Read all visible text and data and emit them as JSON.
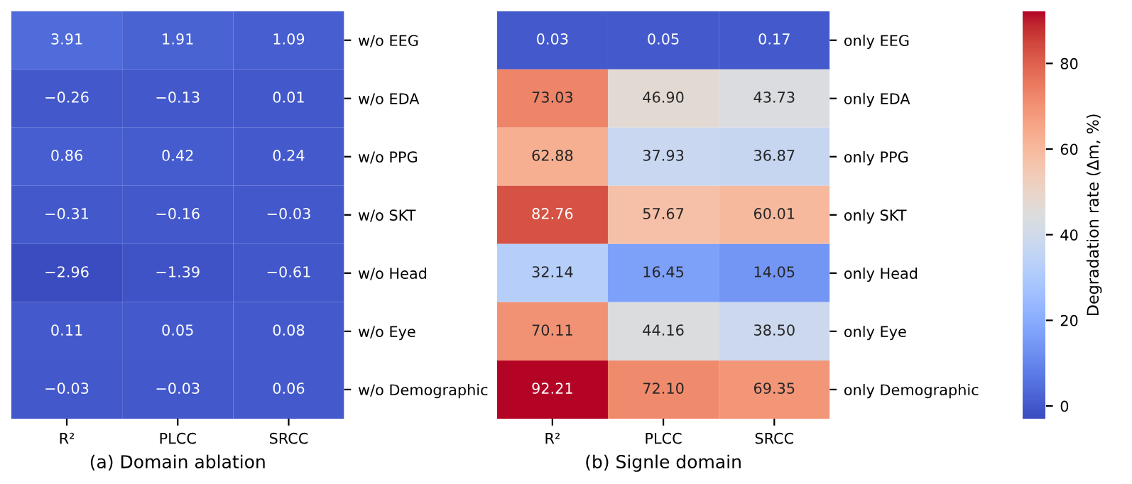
{
  "chart_data": [
    {
      "type": "heatmap",
      "xlabel": "(a) Domain ablation",
      "categories": [
        "R²",
        "PLCC",
        "SRCC"
      ],
      "y_categories": [
        "w/o EEG",
        "w/o EDA",
        "w/o PPG",
        "w/o SKT",
        "w/o Head",
        "w/o Eye",
        "w/o Demographic"
      ],
      "cells": [
        [
          3.91,
          1.91,
          1.09
        ],
        [
          -0.26,
          -0.13,
          0.01
        ],
        [
          0.86,
          0.42,
          0.24
        ],
        [
          -0.31,
          -0.16,
          -0.03
        ],
        [
          -2.96,
          -1.39,
          -0.61
        ],
        [
          0.11,
          0.05,
          0.08
        ],
        [
          -0.03,
          -0.03,
          0.06
        ]
      ],
      "data_labels": true
    },
    {
      "type": "heatmap",
      "xlabel": "(b) Signle domain",
      "categories": [
        "R²",
        "PLCC",
        "SRCC"
      ],
      "y_categories": [
        "only EEG",
        "only EDA",
        "only PPG",
        "only SKT",
        "only Head",
        "only Eye",
        "only Demographic"
      ],
      "cells": [
        [
          0.03,
          0.05,
          0.17
        ],
        [
          73.03,
          46.9,
          43.73
        ],
        [
          62.88,
          37.93,
          36.87
        ],
        [
          82.76,
          57.67,
          60.01
        ],
        [
          32.14,
          16.45,
          14.05
        ],
        [
          70.11,
          44.16,
          38.5
        ],
        [
          92.21,
          72.1,
          69.35
        ]
      ],
      "cell_labels": [
        [
          "0.03",
          "0.05",
          "0.17"
        ],
        [
          "73.03",
          "46.90",
          "43.73"
        ],
        [
          "62.88",
          "37.93",
          "36.87"
        ],
        [
          "82.76",
          "57.67",
          "60.01"
        ],
        [
          "32.14",
          "16.45",
          "14.05"
        ],
        [
          "70.11",
          "44.16",
          "38.50"
        ],
        [
          "92.21",
          "72.10",
          "69.35"
        ]
      ],
      "data_labels": true,
      "clim": [
        -2.96,
        92.21
      ],
      "cticks": [
        0,
        20,
        40,
        60,
        80
      ],
      "clabel": "Degradation rate (Δm, %)"
    }
  ]
}
